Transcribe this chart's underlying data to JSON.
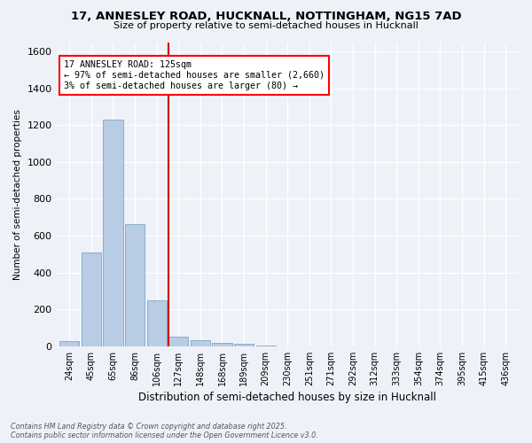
{
  "title": "17, ANNESLEY ROAD, HUCKNALL, NOTTINGHAM, NG15 7AD",
  "subtitle": "Size of property relative to semi-detached houses in Hucknall",
  "xlabel": "Distribution of semi-detached houses by size in Hucknall",
  "ylabel": "Number of semi-detached properties",
  "categories": [
    "24sqm",
    "45sqm",
    "65sqm",
    "86sqm",
    "106sqm",
    "127sqm",
    "148sqm",
    "168sqm",
    "189sqm",
    "209sqm",
    "230sqm",
    "251sqm",
    "271sqm",
    "292sqm",
    "312sqm",
    "333sqm",
    "354sqm",
    "374sqm",
    "395sqm",
    "415sqm",
    "436sqm"
  ],
  "values": [
    30,
    510,
    1230,
    660,
    250,
    50,
    35,
    20,
    15,
    5,
    0,
    0,
    0,
    0,
    0,
    0,
    0,
    0,
    0,
    0,
    0
  ],
  "bar_color": "#b8cce4",
  "bar_edgecolor": "#7ba7cc",
  "ylim": [
    0,
    1650
  ],
  "yticks": [
    0,
    200,
    400,
    600,
    800,
    1000,
    1200,
    1400,
    1600
  ],
  "property_label": "17 ANNESLEY ROAD: 125sqm",
  "pct_smaller": "97% of semi-detached houses are smaller (2,660)",
  "pct_larger": "3% of semi-detached houses are larger (80)",
  "vline_bin_index": 5,
  "vline_color": "#cc0000",
  "footer1": "Contains HM Land Registry data © Crown copyright and database right 2025.",
  "footer2": "Contains public sector information licensed under the Open Government Licence v3.0.",
  "bg_color": "#eef2f8",
  "plot_bg_color": "#eef2f8"
}
